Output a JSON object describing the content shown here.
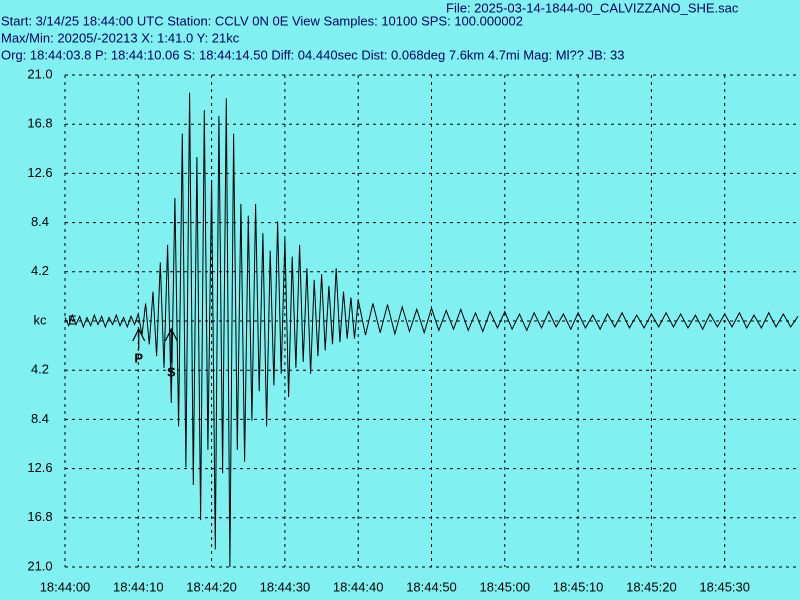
{
  "chart_data": {
    "type": "line",
    "header": [
      "File: 2025-03-14-1844-00_CALVIZZANO_SHE.sac",
      "Start: 3/14/25 18:44:00 UTC Station: CCLV 0N 0E View Samples: 10100  SPS: 100.000002",
      "Max/Min: 20205/-20213 X: 1:41.0 Y: 21kc",
      "Org: 18:44:03.8 P: 18:44:10.06 S: 18:44:14.50 Diff: 04.440sec Dist: 0.068deg 7.6km 4.7mi  Mag: Ml?? JB: 33"
    ],
    "channel": "E",
    "channel_color": "#0000c0",
    "background": "#80f0f0",
    "grid": true,
    "xlim": [
      0,
      100
    ],
    "ylim": [
      -21,
      21
    ],
    "xticks": [
      {
        "value": 0,
        "label": "18:44:00"
      },
      {
        "value": 10,
        "label": "18:44:10"
      },
      {
        "value": 20,
        "label": "18:44:20"
      },
      {
        "value": 30,
        "label": "18:44:30"
      },
      {
        "value": 40,
        "label": "18:44:40"
      },
      {
        "value": 50,
        "label": "18:44:50"
      },
      {
        "value": 60,
        "label": "18:45:00"
      },
      {
        "value": 70,
        "label": "18:45:10"
      },
      {
        "value": 80,
        "label": "18:45:20"
      },
      {
        "value": 90,
        "label": "18:45:30"
      }
    ],
    "yticks": [
      {
        "value": 21,
        "label": "21.0"
      },
      16.8,
      12.6,
      8.4,
      4.2,
      {
        "value": 0,
        "label": "kc"
      },
      {
        "value": -4.2,
        "label": "4.2"
      },
      {
        "value": -8.4,
        "label": "8.4"
      },
      {
        "value": -12.6,
        "label": "12.6"
      },
      {
        "value": -16.8,
        "label": "16.8"
      },
      {
        "value": -21,
        "label": "21.0"
      }
    ],
    "annotations": [
      {
        "text": "P",
        "x": 10.06
      },
      {
        "text": "S",
        "x": 14.5
      }
    ],
    "x": [
      0,
      0.5,
      1,
      1.5,
      2,
      2.5,
      3,
      3.5,
      4,
      4.5,
      5,
      5.5,
      6,
      6.5,
      7,
      7.5,
      8,
      8.5,
      9,
      9.5,
      10,
      10.5,
      11,
      11.5,
      12,
      12.5,
      13,
      13.5,
      14,
      14.5,
      15,
      15.5,
      16,
      16.5,
      17,
      17.5,
      18,
      18.5,
      19,
      19.5,
      20,
      20.5,
      21,
      21.5,
      22,
      22.5,
      23,
      23.5,
      24,
      24.5,
      25,
      25.5,
      26,
      26.5,
      27,
      27.5,
      28,
      28.5,
      29,
      29.5,
      30,
      30.5,
      31,
      31.5,
      32,
      32.5,
      33,
      33.5,
      34,
      34.5,
      35,
      35.5,
      36,
      36.5,
      37,
      37.5,
      38,
      38.5,
      39,
      39.5,
      40,
      41,
      42,
      43,
      44,
      45,
      46,
      47,
      48,
      49,
      50,
      51,
      52,
      53,
      54,
      55,
      56,
      57,
      58,
      59,
      60,
      61,
      62,
      63,
      64,
      65,
      66,
      67,
      68,
      69,
      70,
      71,
      72,
      73,
      74,
      75,
      76,
      77,
      78,
      79,
      80,
      81,
      82,
      83,
      84,
      85,
      86,
      87,
      88,
      89,
      90,
      91,
      92,
      93,
      94,
      95,
      96,
      97,
      98,
      99,
      100
    ],
    "series": [
      {
        "color": "#000000",
        "values": [
          0.3,
          -0.4,
          0.5,
          -0.3,
          0.4,
          -0.5,
          0.3,
          -0.4,
          0.5,
          -0.3,
          0.4,
          -0.5,
          0.3,
          -0.3,
          0.5,
          -0.4,
          0.3,
          -0.5,
          0.4,
          -0.3,
          0.6,
          -1.2,
          1.5,
          -2.0,
          2.5,
          -3.0,
          5.0,
          -4.0,
          6.5,
          -7.0,
          10.5,
          -9.0,
          16.0,
          -12.5,
          19.5,
          -14.0,
          14.0,
          -17.0,
          18.0,
          -11.0,
          12.0,
          -19.5,
          17.5,
          -13.0,
          19.0,
          -21.0,
          16.0,
          -11.0,
          10.0,
          -12.0,
          9.0,
          -8.5,
          10.0,
          -6.0,
          7.5,
          -9.0,
          6.0,
          -5.5,
          8.5,
          -4.5,
          7.0,
          -6.5,
          5.5,
          -4.0,
          6.5,
          -3.5,
          4.5,
          -4.5,
          3.5,
          -3.0,
          4.0,
          -2.5,
          3.0,
          -2.0,
          4.5,
          -1.8,
          2.5,
          -1.5,
          2.0,
          -1.5,
          1.8,
          -1.2,
          1.5,
          -1.0,
          1.4,
          -1.1,
          1.2,
          -0.9,
          1.0,
          -1.0,
          1.1,
          -0.8,
          0.9,
          -0.7,
          1.0,
          -0.8,
          0.7,
          -0.9,
          0.8,
          -0.6,
          0.8,
          -0.7,
          0.6,
          -0.8,
          0.7,
          -0.6,
          0.8,
          -0.5,
          0.6,
          -0.7,
          0.7,
          -0.6,
          0.5,
          -0.7,
          0.6,
          -0.5,
          0.7,
          -0.6,
          0.5,
          -0.6,
          0.6,
          -0.5,
          0.7,
          -0.5,
          0.6,
          -0.6,
          0.5,
          -0.7,
          0.6,
          -0.5,
          0.6,
          -0.5,
          0.7,
          -0.6,
          0.5,
          -0.6,
          0.7,
          -0.5,
          0.6,
          -0.5,
          0.4
        ]
      }
    ]
  }
}
